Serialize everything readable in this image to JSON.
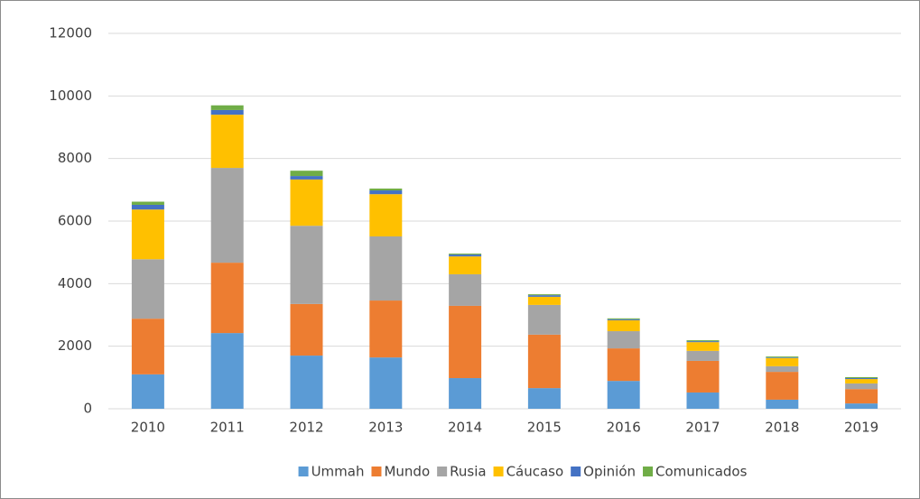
{
  "chart_data": {
    "type": "stacked_bar",
    "categories": [
      "2010",
      "2011",
      "2012",
      "2013",
      "2014",
      "2015",
      "2016",
      "2017",
      "2018",
      "2019"
    ],
    "series": [
      {
        "name": "Ummah",
        "color": "#5b9bd5",
        "values": [
          1100,
          2420,
          1700,
          1640,
          980,
          660,
          890,
          520,
          290,
          170
        ]
      },
      {
        "name": "Mundo",
        "color": "#ed7d31",
        "values": [
          1780,
          2250,
          1650,
          1820,
          2310,
          1710,
          1040,
          1010,
          890,
          460
        ]
      },
      {
        "name": "Rusia",
        "color": "#a5a5a5",
        "values": [
          1900,
          3030,
          2500,
          2050,
          1010,
          950,
          550,
          320,
          180,
          180
        ]
      },
      {
        "name": "Cáucaso",
        "color": "#ffc000",
        "values": [
          1590,
          1700,
          1480,
          1350,
          570,
          260,
          350,
          280,
          260,
          140
        ]
      },
      {
        "name": "Opinión",
        "color": "#4472c4",
        "values": [
          150,
          150,
          110,
          120,
          60,
          50,
          30,
          30,
          20,
          30
        ]
      },
      {
        "name": "Comunicados",
        "color": "#70ad47",
        "values": [
          100,
          150,
          170,
          60,
          30,
          30,
          30,
          30,
          30,
          30
        ]
      }
    ],
    "ylim": [
      0,
      12000
    ],
    "yticks": [
      0,
      2000,
      4000,
      6000,
      8000,
      10000,
      12000
    ],
    "grid": true,
    "legend": "bottom"
  }
}
